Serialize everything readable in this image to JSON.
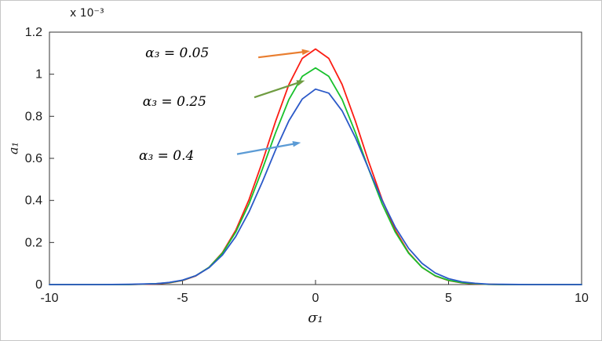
{
  "figure": {
    "background": "#ffffff",
    "border_color": "#c6c6c6"
  },
  "chart_data": {
    "type": "line",
    "title": "",
    "xlabel": "σ₁",
    "ylabel": "a₁",
    "exponent_label": "x 10⁻³",
    "xlim": [
      -10,
      10
    ],
    "ylim": [
      0,
      1.2
    ],
    "grid": false,
    "legend": "none (arrow annotations instead)",
    "xtick_values": [
      -10,
      -5,
      0,
      5,
      10
    ],
    "xtick_labels": [
      "-10",
      "-5",
      "0",
      "5",
      "10"
    ],
    "ytick_values": [
      0,
      0.2,
      0.4,
      0.6,
      0.8,
      1,
      1.2
    ],
    "ytick_labels": [
      "0",
      "0.2",
      "0.4",
      "0.6",
      "0.8",
      "1",
      "1.2"
    ],
    "x": [
      -10,
      -9,
      -8,
      -7,
      -6,
      -5.5,
      -5,
      -4.5,
      -4,
      -3.5,
      -3,
      -2.5,
      -2,
      -1.5,
      -1,
      -0.5,
      0,
      0.5,
      1,
      1.5,
      2,
      2.5,
      3,
      3.5,
      4,
      4.5,
      5,
      5.5,
      6,
      6.5,
      7,
      8,
      9,
      10
    ],
    "series": [
      {
        "id": "alpha3-0-05",
        "name": "α₃ = 0.05",
        "color": "#fb1d14",
        "peak_y_times_1e3": 1.12,
        "y": [
          0,
          0,
          0,
          0,
          0.003,
          0.008,
          0.019,
          0.041,
          0.082,
          0.152,
          0.258,
          0.404,
          0.583,
          0.776,
          0.951,
          1.075,
          1.12,
          1.075,
          0.951,
          0.776,
          0.583,
          0.404,
          0.258,
          0.152,
          0.082,
          0.041,
          0.019,
          0.008,
          0.003,
          0.001,
          0,
          0,
          0,
          0
        ]
      },
      {
        "id": "alpha3-0-25",
        "name": "α₃ = 0.25",
        "color": "#18c12c",
        "peak_y_times_1e3": 1.03,
        "y": [
          0,
          0,
          0,
          0,
          0.004,
          0.009,
          0.02,
          0.042,
          0.082,
          0.149,
          0.249,
          0.384,
          0.548,
          0.722,
          0.88,
          0.99,
          1.03,
          0.99,
          0.88,
          0.722,
          0.548,
          0.384,
          0.249,
          0.149,
          0.082,
          0.042,
          0.02,
          0.009,
          0.004,
          0.001,
          0,
          0,
          0,
          0
        ]
      },
      {
        "id": "alpha3-0-4",
        "name": "α₃ = 0.4",
        "color": "#2b59c8",
        "peak_y_times_1e3": 0.93,
        "y": [
          0,
          0,
          0,
          0.001,
          0.004,
          0.01,
          0.021,
          0.042,
          0.08,
          0.14,
          0.228,
          0.346,
          0.488,
          0.64,
          0.779,
          0.882,
          0.929,
          0.91,
          0.826,
          0.698,
          0.549,
          0.401,
          0.272,
          0.172,
          0.101,
          0.055,
          0.028,
          0.013,
          0.006,
          0.002,
          0.001,
          0,
          0,
          0
        ]
      }
    ],
    "annotations": [
      {
        "label": "α₃ = 0.05",
        "arrow_color": "#e97e30",
        "label_at": [
          -5.2,
          1.1
        ],
        "arrow_from": [
          -2.15,
          1.08
        ],
        "arrow_to": [
          -0.2,
          1.11
        ]
      },
      {
        "label": "α₃ = 0.25",
        "arrow_color": "#6f9c41",
        "label_at": [
          -5.3,
          0.87
        ],
        "arrow_from": [
          -2.3,
          0.89
        ],
        "arrow_to": [
          -0.4,
          0.97
        ]
      },
      {
        "label": "α₃ = 0.4",
        "arrow_color": "#5b9bd5",
        "label_at": [
          -5.6,
          0.61
        ],
        "arrow_from": [
          -2.95,
          0.62
        ],
        "arrow_to": [
          -0.55,
          0.675
        ]
      }
    ]
  }
}
